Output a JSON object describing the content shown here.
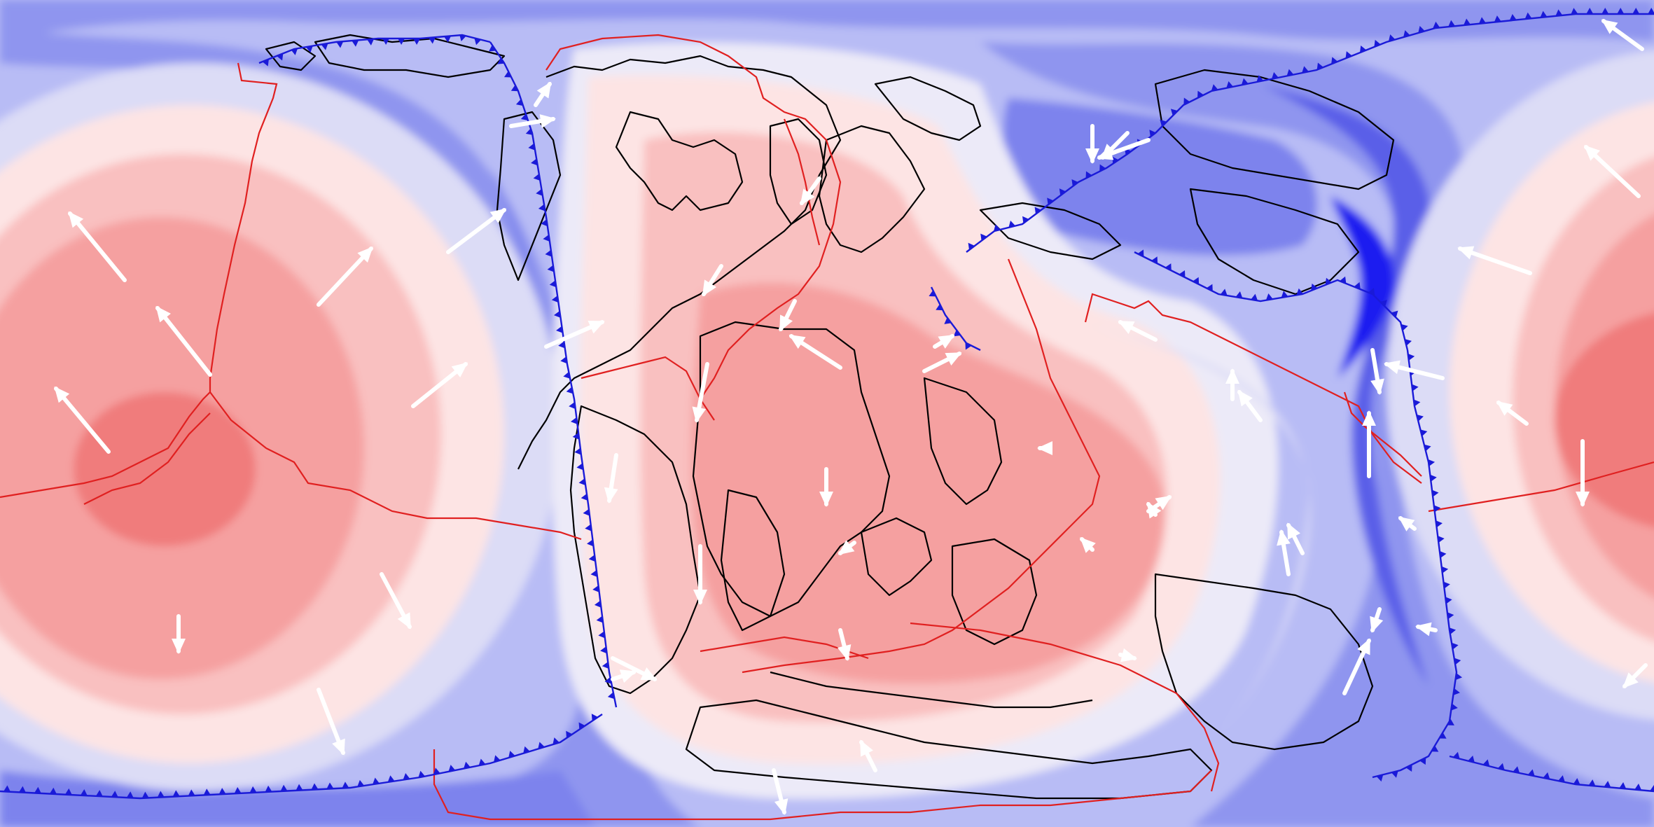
{
  "map": {
    "projection": "equirectangular",
    "field_colors": {
      "base_blue": "#b8bcf5",
      "mid_blue": "#8f95ef",
      "strong_blue": "#5a5fe8",
      "deep_blue": "#1a1ef0",
      "pale": "#eceaf8",
      "pale_pink": "#fde4e4",
      "pink": "#f9c0c0",
      "salmon": "#f5a0a0",
      "red": "#f07c7c"
    },
    "boundary_colors": {
      "ridge": "#e02020",
      "subduction": "#1a1ad8",
      "coastline": "#000000",
      "velocity_arrow": "#ffffff"
    },
    "legend_text": []
  }
}
